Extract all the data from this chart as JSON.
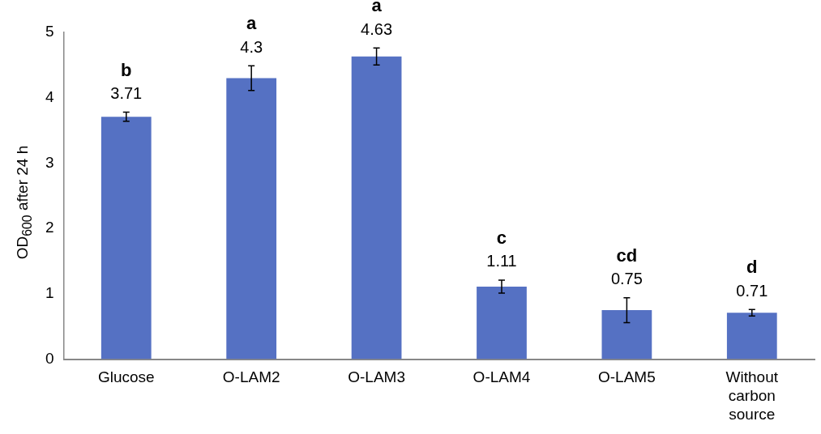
{
  "chart_data": {
    "type": "bar",
    "ylabel": "OD$_{600}$ after 24 h",
    "categories": [
      "Glucose",
      "O-LAM2",
      "O-LAM3",
      "O-LAM4",
      "O-LAM5",
      "Without carbon source"
    ],
    "values": [
      3.71,
      4.3,
      4.63,
      1.11,
      0.75,
      0.71
    ],
    "errors": [
      0.07,
      0.19,
      0.13,
      0.1,
      0.19,
      0.05
    ],
    "color": "#5571c3",
    "ylim": [
      0,
      5
    ],
    "yticks": [
      0,
      1,
      2,
      3,
      4,
      5
    ],
    "data_labels": true,
    "annotations": [
      "b",
      "a",
      "a",
      "c",
      "cd",
      "d"
    ]
  }
}
